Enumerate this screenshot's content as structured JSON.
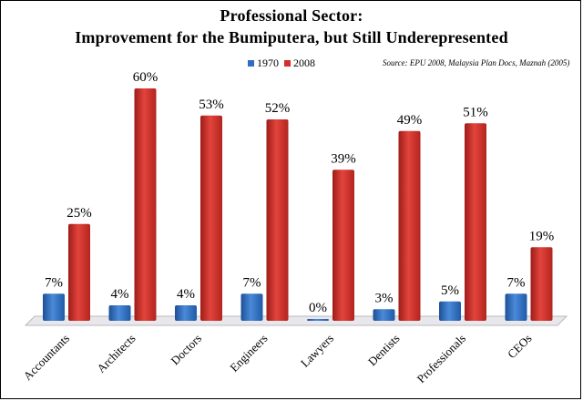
{
  "title_line1": "Professional Sector:",
  "title_line2": "Improvement for the Bumiputera, but Still Underepresented",
  "source": "Source: EPU 2008, Malaysia Plan Docs, Maznah (2005)",
  "colors": {
    "s1970": "#2e6ec4",
    "s2008": "#d2302b",
    "floor": "#e8e8ec"
  },
  "chart_data": {
    "type": "bar",
    "title": "Professional Sector: Improvement for the Bumiputera, but Still Underepresented",
    "categories": [
      "Accountants",
      "Architects",
      "Doctors",
      "Engineers",
      "Lawyers",
      "Dentists",
      "Professionals",
      "CEOs"
    ],
    "series": [
      {
        "name": "1970",
        "values": [
          7,
          4,
          4,
          7,
          0,
          3,
          5,
          7
        ],
        "labels": [
          "7%",
          "4%",
          "4%",
          "7%",
          "0%",
          "3%",
          "5%",
          "7%"
        ]
      },
      {
        "name": "2008",
        "values": [
          25,
          60,
          53,
          52,
          39,
          49,
          51,
          19
        ],
        "labels": [
          "25%",
          "60%",
          "53%",
          "52%",
          "39%",
          "49%",
          "51%",
          "19%"
        ]
      }
    ],
    "ylim": [
      0,
      60
    ],
    "legend": "top-center",
    "grid": false,
    "xlabel": "",
    "ylabel": ""
  }
}
